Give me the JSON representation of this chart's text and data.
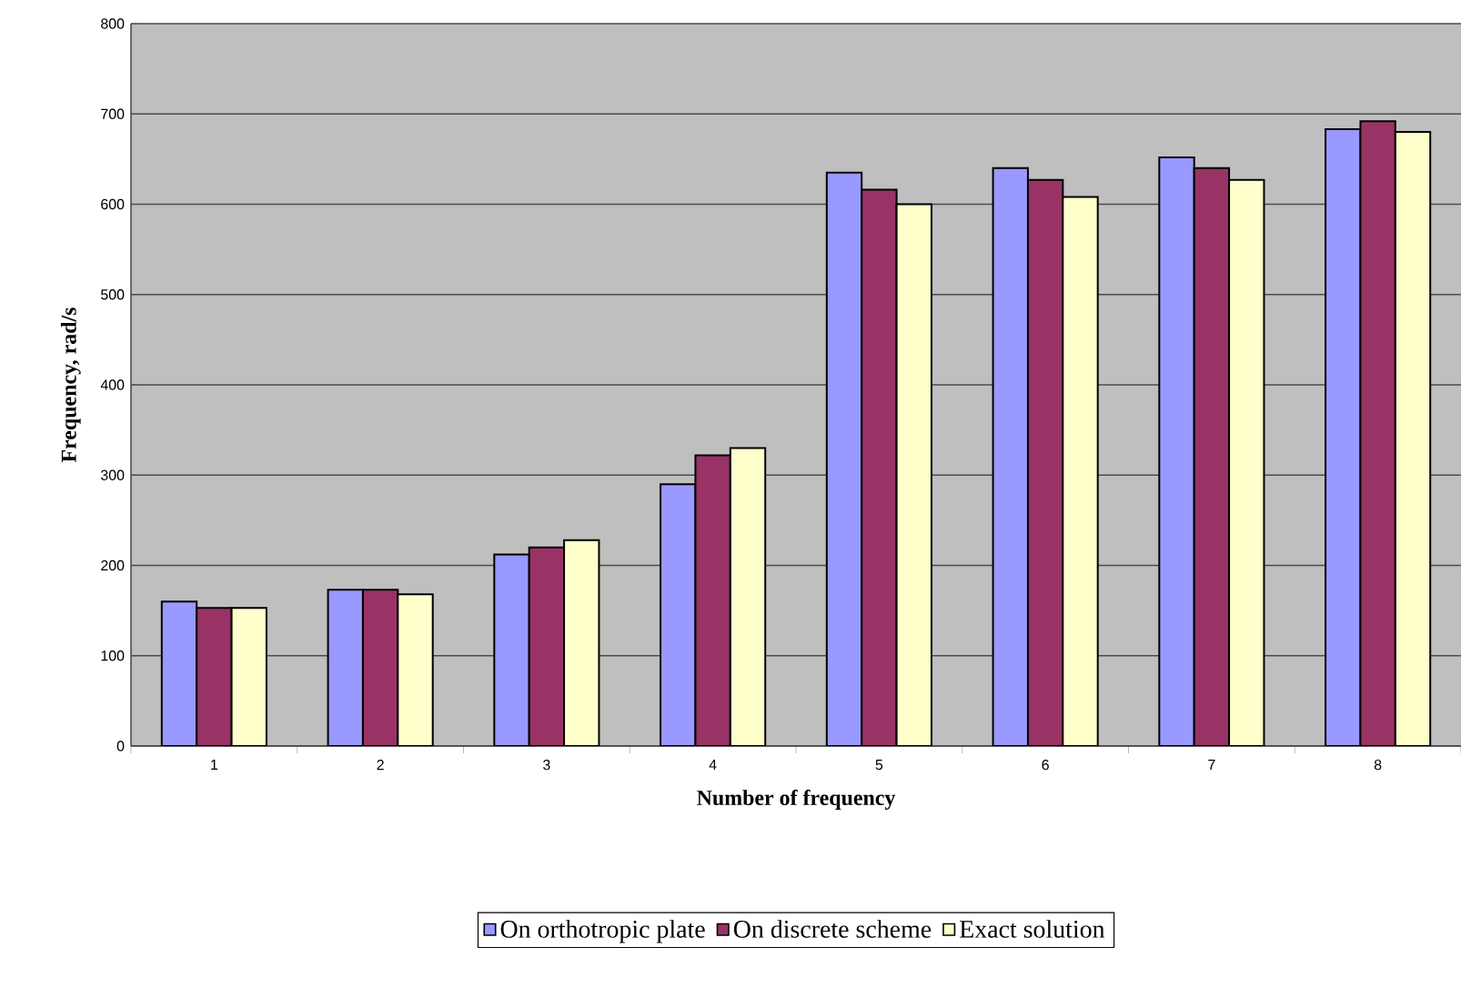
{
  "chart_data": {
    "type": "bar",
    "xlabel": "Number of frequency",
    "ylabel": "Frequency, rad/s",
    "categories": [
      "1",
      "2",
      "3",
      "4",
      "5",
      "6",
      "7",
      "8"
    ],
    "series": [
      {
        "name": "On orthotropic plate",
        "color": "#9999ff",
        "values": [
          160,
          173,
          212,
          290,
          635,
          640,
          652,
          683
        ]
      },
      {
        "name": "On discrete scheme",
        "color": "#993366",
        "values": [
          153,
          173,
          220,
          322,
          616,
          627,
          640,
          692
        ]
      },
      {
        "name": "Exact solution",
        "color": "#ffffcc",
        "values": [
          153,
          168,
          228,
          330,
          600,
          608,
          627,
          680
        ]
      }
    ],
    "ylim": [
      0,
      800
    ],
    "yticks": [
      0,
      100,
      200,
      300,
      400,
      500,
      600,
      700,
      800
    ],
    "grid": "y",
    "legend": "bottom"
  }
}
